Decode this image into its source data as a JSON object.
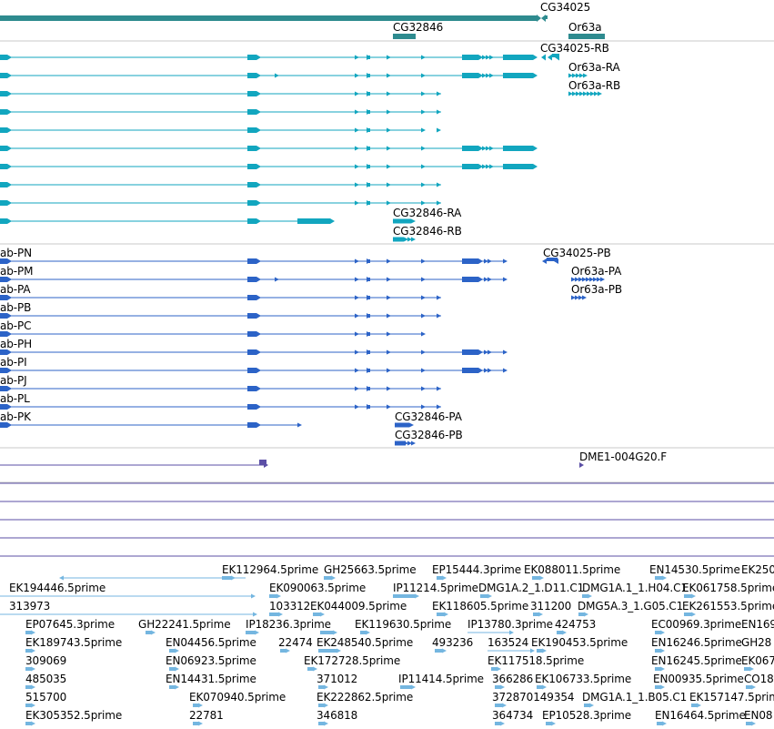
{
  "colors": {
    "gene": "#2e8b8f",
    "mrna": "#12a6bf",
    "cds": "#2c63c7",
    "est_pair": "#5b4fa6",
    "est": "#74b6e0",
    "divider": "#c8c8c8"
  },
  "gene_track": {
    "features": [
      {
        "label": "CG34025"
      },
      {
        "label": "CG32846"
      },
      {
        "label": "Or63a"
      }
    ]
  },
  "mrna_track": {
    "features": [
      {
        "label": "CG34025-RB"
      },
      {
        "label": "Or63a-RA"
      },
      {
        "label": "Or63a-RB"
      },
      {
        "label": "CG32846-RA"
      },
      {
        "label": "CG32846-RB"
      }
    ]
  },
  "cds_track": {
    "features": [
      {
        "label": "ab-PN"
      },
      {
        "label": "ab-PM"
      },
      {
        "label": "ab-PA"
      },
      {
        "label": "ab-PB"
      },
      {
        "label": "ab-PC"
      },
      {
        "label": "ab-PH"
      },
      {
        "label": "ab-PI"
      },
      {
        "label": "ab-PJ"
      },
      {
        "label": "ab-PL"
      },
      {
        "label": "ab-PK"
      },
      {
        "label": "CG34025-PB"
      },
      {
        "label": "Or63a-PA"
      },
      {
        "label": "Or63a-PB"
      },
      {
        "label": "CG32846-PA"
      },
      {
        "label": "CG32846-PB"
      }
    ]
  },
  "cdna_track": {
    "features": [
      {
        "label": "DME1-004G20.F"
      }
    ]
  },
  "est_track": {
    "features": [
      {
        "label": "EK112964.5prime"
      },
      {
        "label": "GH25663.5prime"
      },
      {
        "label": "EP15444.3prime"
      },
      {
        "label": "EK088011.5prime"
      },
      {
        "label": "EN14530.5prime"
      },
      {
        "label": "EK250"
      },
      {
        "label": "EK194446.5prime"
      },
      {
        "label": "EK090063.5prime"
      },
      {
        "label": "IP11214.5prime"
      },
      {
        "label": "DMG1A.2_1.D11.C1"
      },
      {
        "label": "DMG1A.1_1.H04.C1"
      },
      {
        "label": "EK061758.5prime"
      },
      {
        "label": "313973"
      },
      {
        "label": "103312"
      },
      {
        "label": "EK044009.5prime"
      },
      {
        "label": "EK118605.5prime"
      },
      {
        "label": "311200"
      },
      {
        "label": "DMG5A.3_1.G05.C1"
      },
      {
        "label": "EK261553.5prime"
      },
      {
        "label": "EP07645.3prime"
      },
      {
        "label": "GH22241.5prime"
      },
      {
        "label": "IP18236.3prime"
      },
      {
        "label": "EK119630.5prime"
      },
      {
        "label": "IP13780.3prime"
      },
      {
        "label": "424753"
      },
      {
        "label": "EC00969.3prime"
      },
      {
        "label": "EN169"
      },
      {
        "label": "EK189743.5prime"
      },
      {
        "label": "EN04456.5prime"
      },
      {
        "label": "22474"
      },
      {
        "label": "EK248540.5prime"
      },
      {
        "label": "493236"
      },
      {
        "label": "163524"
      },
      {
        "label": "EK190453.5prime"
      },
      {
        "label": "EN16246.5prime"
      },
      {
        "label": "GH28"
      },
      {
        "label": "309069"
      },
      {
        "label": "EN06923.5prime"
      },
      {
        "label": "EK172728.5prime"
      },
      {
        "label": "EK117518.5prime"
      },
      {
        "label": "EN16245.5prime"
      },
      {
        "label": "EK067"
      },
      {
        "label": "485035"
      },
      {
        "label": "EN14431.5prime"
      },
      {
        "label": "371012"
      },
      {
        "label": "IP11414.5prime"
      },
      {
        "label": "366286"
      },
      {
        "label": "EK106733.5prime"
      },
      {
        "label": "EN00935.5prime"
      },
      {
        "label": "CO18"
      },
      {
        "label": "515700"
      },
      {
        "label": "EK070940.5prime"
      },
      {
        "label": "EK222862.5prime"
      },
      {
        "label": "372870149354"
      },
      {
        "label": "DMG1A.1_1.B05.C1"
      },
      {
        "label": "EK157147.5prime"
      },
      {
        "label": "EK305352.5prime"
      },
      {
        "label": "22781"
      },
      {
        "label": "346818"
      },
      {
        "label": "364734"
      },
      {
        "label": "EP10528.3prime"
      },
      {
        "label": "EN16464.5prime"
      },
      {
        "label": "EN08"
      }
    ]
  }
}
